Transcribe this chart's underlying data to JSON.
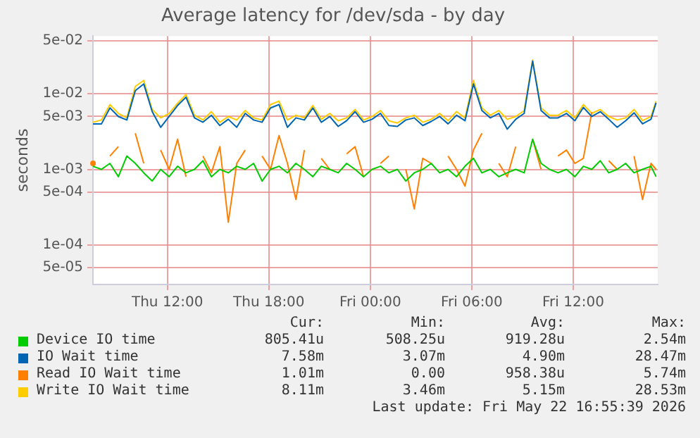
{
  "chart_data": {
    "type": "line",
    "title": "Average latency for /dev/sda - by day",
    "ylabel": "seconds",
    "log": "y",
    "grid": true,
    "legend": "bottom",
    "marker": "none",
    "line_style": "solid",
    "x": [
      "2026-05-21T07:36",
      "2026-05-21T08:06",
      "2026-05-21T08:36",
      "2026-05-21T09:06",
      "2026-05-21T09:36",
      "2026-05-21T10:06",
      "2026-05-21T10:36",
      "2026-05-21T11:06",
      "2026-05-21T11:36",
      "2026-05-21T12:06",
      "2026-05-21T12:36",
      "2026-05-21T13:06",
      "2026-05-21T13:36",
      "2026-05-21T14:06",
      "2026-05-21T14:36",
      "2026-05-21T15:06",
      "2026-05-21T15:36",
      "2026-05-21T16:06",
      "2026-05-21T16:36",
      "2026-05-21T17:06",
      "2026-05-21T17:36",
      "2026-05-21T18:06",
      "2026-05-21T18:36",
      "2026-05-21T19:06",
      "2026-05-21T19:36",
      "2026-05-21T20:06",
      "2026-05-21T20:36",
      "2026-05-21T21:06",
      "2026-05-21T21:36",
      "2026-05-21T22:06",
      "2026-05-21T22:36",
      "2026-05-21T23:06",
      "2026-05-21T23:36",
      "2026-05-22T00:06",
      "2026-05-22T00:36",
      "2026-05-22T01:06",
      "2026-05-22T01:36",
      "2026-05-22T02:06",
      "2026-05-22T02:36",
      "2026-05-22T03:06",
      "2026-05-22T03:36",
      "2026-05-22T04:06",
      "2026-05-22T04:36",
      "2026-05-22T05:06",
      "2026-05-22T05:36",
      "2026-05-22T06:06",
      "2026-05-22T06:36",
      "2026-05-22T07:06",
      "2026-05-22T07:36",
      "2026-05-22T08:06",
      "2026-05-22T08:36",
      "2026-05-22T09:06",
      "2026-05-22T09:36",
      "2026-05-22T10:06",
      "2026-05-22T10:36",
      "2026-05-22T11:06",
      "2026-05-22T11:36",
      "2026-05-22T12:06",
      "2026-05-22T12:36",
      "2026-05-22T13:06",
      "2026-05-22T13:36",
      "2026-05-22T14:06",
      "2026-05-22T14:36",
      "2026-05-22T15:06",
      "2026-05-22T15:36",
      "2026-05-22T16:06",
      "2026-05-22T16:36",
      "2026-05-22T16:54"
    ],
    "xlim": [
      "2026-05-21T07:36",
      "2026-05-22T17:00"
    ],
    "xticks": [
      {
        "value": "2026-05-21T12:00",
        "label": "Thu 12:00"
      },
      {
        "value": "2026-05-21T18:00",
        "label": "Thu 18:00"
      },
      {
        "value": "2026-05-22T00:00",
        "label": "Fri 00:00"
      },
      {
        "value": "2026-05-22T06:00",
        "label": "Fri 06:00"
      },
      {
        "value": "2026-05-22T12:00",
        "label": "Fri 12:00"
      }
    ],
    "ylim": [
      3e-05,
      0.058
    ],
    "yticks": [
      {
        "value": 5e-05,
        "label": "5e-05"
      },
      {
        "value": 0.0001,
        "label": "1e-04"
      },
      {
        "value": 0.0005,
        "label": "5e-04"
      },
      {
        "value": 0.001,
        "label": "1e-03"
      },
      {
        "value": 0.005,
        "label": "5e-03"
      },
      {
        "value": 0.01,
        "label": "1e-02"
      },
      {
        "value": 0.05,
        "label": "5e-02"
      }
    ],
    "series": [
      {
        "name": "Device IO time",
        "color": "#00cc00",
        "values": [
          0.0011,
          0.001,
          0.0012,
          0.0008,
          0.0015,
          0.0012,
          0.0009,
          0.0007,
          0.001,
          0.0008,
          0.0011,
          0.0009,
          0.001,
          0.0013,
          0.0008,
          0.001,
          0.0009,
          0.0011,
          0.001,
          0.0012,
          0.0007,
          0.001,
          0.0011,
          0.0009,
          0.0012,
          0.001,
          0.0008,
          0.0011,
          0.001,
          0.0009,
          0.0012,
          0.001,
          0.0008,
          0.001,
          0.0011,
          0.0009,
          0.001,
          0.0007,
          0.0009,
          0.001,
          0.0012,
          0.0009,
          0.001,
          0.0008,
          0.0011,
          0.0014,
          0.0009,
          0.001,
          0.0008,
          0.0009,
          0.001,
          0.0009,
          0.0025,
          0.0012,
          0.001,
          0.0009,
          0.001,
          0.0008,
          0.0011,
          0.001,
          0.0013,
          0.0009,
          0.001,
          0.0012,
          0.0009,
          0.001,
          0.0011,
          0.0008
        ]
      },
      {
        "name": "IO Wait time",
        "color": "#0066b3",
        "values": [
          0.004,
          0.004,
          0.0065,
          0.005,
          0.0045,
          0.011,
          0.0135,
          0.0058,
          0.0036,
          0.005,
          0.007,
          0.009,
          0.0048,
          0.0042,
          0.0052,
          0.0038,
          0.0046,
          0.0036,
          0.0055,
          0.0045,
          0.0042,
          0.0065,
          0.0072,
          0.0036,
          0.0048,
          0.0045,
          0.0065,
          0.0042,
          0.005,
          0.0037,
          0.0044,
          0.0058,
          0.0042,
          0.0046,
          0.0055,
          0.0038,
          0.0037,
          0.0045,
          0.0048,
          0.0038,
          0.0043,
          0.005,
          0.004,
          0.0052,
          0.0044,
          0.0135,
          0.006,
          0.0048,
          0.0055,
          0.0034,
          0.0046,
          0.0055,
          0.027,
          0.006,
          0.0048,
          0.0048,
          0.0055,
          0.0044,
          0.0066,
          0.005,
          0.0058,
          0.0046,
          0.0036,
          0.0044,
          0.0056,
          0.004,
          0.0046,
          0.0076
        ]
      },
      {
        "name": "Read IO Wait time",
        "color": "#ff8000",
        "values": [
          0.0012,
          null,
          0.0015,
          0.002,
          null,
          0.003,
          0.0012,
          null,
          0.0018,
          0.001,
          0.0025,
          0.0008,
          null,
          0.0015,
          0.0009,
          0.002,
          0.0002,
          0.0012,
          0.0018,
          null,
          0.0015,
          0.001,
          0.0028,
          0.0012,
          0.0004,
          0.0018,
          null,
          0.0014,
          0.001,
          null,
          0.0016,
          0.002,
          0.0008,
          null,
          0.0012,
          0.0015,
          null,
          0.001,
          0.0003,
          0.0014,
          0.0012,
          null,
          0.0015,
          0.001,
          0.0006,
          0.0018,
          0.003,
          null,
          0.0012,
          0.0008,
          0.002,
          null,
          0.0025,
          0.001,
          null,
          0.0015,
          0.0018,
          0.0012,
          0.0014,
          0.0057,
          null,
          0.0013,
          0.001,
          null,
          0.0015,
          0.0004,
          0.0012,
          0.001
        ]
      },
      {
        "name": "Write IO Wait time",
        "color": "#ffcc00",
        "values": [
          0.0042,
          0.0045,
          0.0072,
          0.0055,
          0.0048,
          0.0125,
          0.015,
          0.0062,
          0.0048,
          0.0055,
          0.0075,
          0.0098,
          0.0052,
          0.0045,
          0.0058,
          0.0042,
          0.005,
          0.0045,
          0.006,
          0.0048,
          0.0045,
          0.0072,
          0.008,
          0.0045,
          0.0052,
          0.0048,
          0.007,
          0.0046,
          0.0055,
          0.0044,
          0.0048,
          0.0062,
          0.0045,
          0.005,
          0.006,
          0.0044,
          0.0041,
          0.0048,
          0.0052,
          0.0042,
          0.0046,
          0.0055,
          0.0044,
          0.0058,
          0.0048,
          0.015,
          0.0065,
          0.0052,
          0.006,
          0.0046,
          0.005,
          0.006,
          0.028,
          0.0065,
          0.0052,
          0.0052,
          0.006,
          0.0048,
          0.0072,
          0.0055,
          0.0062,
          0.005,
          0.0045,
          0.0048,
          0.0062,
          0.0044,
          0.005,
          0.008
        ]
      }
    ],
    "annotations": [
      "Cur:",
      "Min:",
      "Avg:",
      "Max:",
      "805.41u",
      "508.25u",
      "919.28u",
      "2.54m",
      "7.58m",
      "3.07m",
      "4.90m",
      "28.47m",
      "1.01m",
      "0.00",
      "958.38u",
      "5.74m",
      "8.11m",
      "3.46m",
      "5.15m",
      "28.53m",
      "Last update: Fri May 22 16:55:39 2026"
    ]
  }
}
